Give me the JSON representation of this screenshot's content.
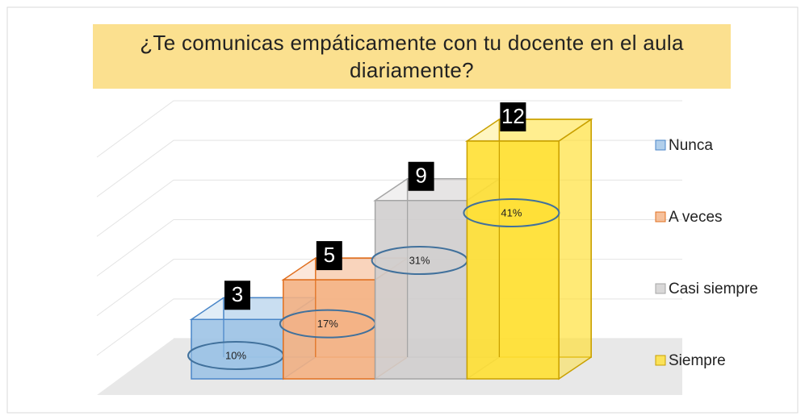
{
  "chart_data": {
    "type": "bar3d",
    "title": "¿Te comunicas empáticamente con tu docente en el aula diariamente?",
    "categories": [
      "Nunca",
      "A veces",
      "Casi siempre",
      "Siempre"
    ],
    "values": [
      3,
      5,
      9,
      12
    ],
    "percentages": [
      10,
      17,
      31,
      41
    ],
    "percentage_labels": [
      "10%",
      "17%",
      "31%",
      "41%"
    ],
    "colors": [
      "#9dc3e6",
      "#f4b183",
      "#d0cece",
      "#ffe033"
    ],
    "edge_colors": [
      "#4a86c8",
      "#e07020",
      "#a5a5a5",
      "#c9a000"
    ],
    "ylim": [
      0,
      12
    ],
    "yticks": [
      0,
      2,
      4,
      6,
      8,
      10,
      12
    ],
    "grid": true,
    "legend": "right"
  }
}
